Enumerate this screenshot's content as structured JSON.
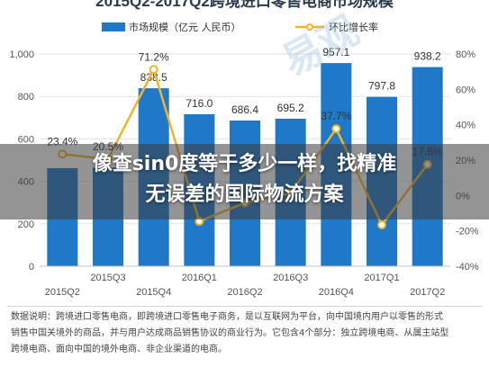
{
  "chart_data": {
    "type": "bar",
    "title": "2015Q2-2017Q2跨境进口零售电商市场规模",
    "categories": [
      "2015Q2",
      "2015Q3",
      "2015Q4",
      "2016Q1",
      "2016Q2",
      "2016Q3",
      "2016Q4",
      "2017Q1",
      "2017Q2"
    ],
    "series": [
      {
        "name": "市场规模（亿元 人民币）",
        "kind": "bar",
        "axis": "left",
        "color": "#1f78c8",
        "values": [
          462,
          465,
          838.5,
          716.0,
          686.4,
          695.2,
          957.1,
          797.8,
          938.2
        ],
        "labels": [
          "",
          "",
          "838.5",
          "716.0",
          "686.4",
          "695.2",
          "957.1",
          "797.8",
          "938.2"
        ]
      },
      {
        "name": "环比增长率",
        "kind": "line",
        "axis": "right",
        "color": "#f0b429",
        "values": [
          23.4,
          20.5,
          71.2,
          -14.6,
          -4.1,
          1.3,
          37.7,
          -16.6,
          17.6
        ],
        "labels": [
          "23.4%",
          "20.5%",
          "71.2%",
          "",
          "",
          "",
          "37.7%",
          "",
          "17.6%"
        ]
      }
    ],
    "y_left": {
      "min": 0,
      "max": 1000,
      "ticks": [
        "0",
        "200",
        "400",
        "600",
        "800",
        "1,000"
      ]
    },
    "y_right": {
      "min": -40,
      "max": 80,
      "ticks": [
        "-40%",
        "-20%",
        "0%",
        "20%",
        "40%",
        "60%",
        "80%"
      ]
    },
    "x_tick_labels_top": [
      "2015Q3",
      "2016Q1",
      "2016Q3",
      "2017Q1"
    ],
    "x_tick_labels_bottom": [
      "2015Q2",
      "2015Q4",
      "2016Q2",
      "2016Q4",
      "2017Q2"
    ],
    "legend_position": "top",
    "grid": "horizontal"
  },
  "watermark": "易观",
  "overlay": {
    "line1": "像查sin0度等于多少一样，找精准",
    "line2": "无误差的国际物流方案"
  },
  "footnote": {
    "line1": "数据说明：跨境进口零售电商，即跨境进口零售电子商务，是以互联网为平台，向中国境内用户以零售的形式",
    "line2": "销售中国关境外的商品，并与用户达成商品销售协议的商业行为。它包含4个部分：独立跨境电商、从属主站型",
    "line3": "跨境电商、面向中国的境外电商、非企业渠道的电商。"
  }
}
